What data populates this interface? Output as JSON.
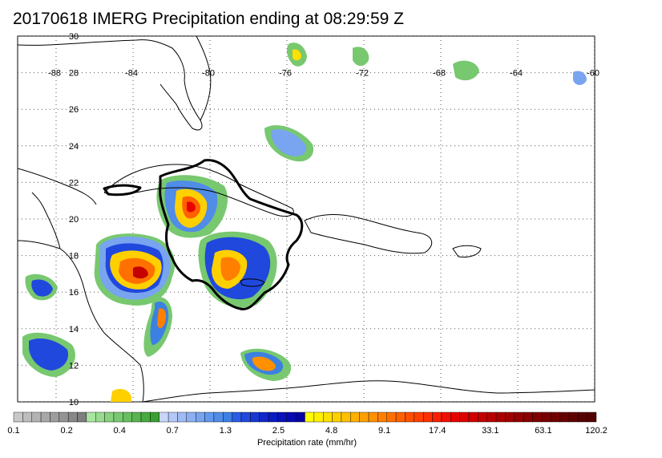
{
  "title": "20170618 IMERG Precipitation ending at 08:29:59 Z",
  "map": {
    "lon_labels": [
      "-88",
      "-84",
      "-80",
      "-76",
      "-72",
      "-68",
      "-64",
      "-60"
    ],
    "lon_values": [
      -88,
      -84,
      -80,
      -76,
      -72,
      -68,
      -64,
      -60
    ],
    "lat_labels": [
      "30",
      "28",
      "26",
      "24",
      "22",
      "20",
      "18",
      "16",
      "14",
      "12",
      "10"
    ],
    "lat_values": [
      30,
      28,
      26,
      24,
      22,
      20,
      18,
      16,
      14,
      12,
      10
    ],
    "lon_range": [
      -90,
      -60
    ],
    "lat_range": [
      10,
      30
    ],
    "grid": "dotted"
  },
  "colorbar": {
    "title": "Precipitation rate (mm/hr)",
    "tick_labels": [
      "0.1",
      "0.2",
      "0.4",
      "0.7",
      "1.3",
      "2.5",
      "4.8",
      "9.1",
      "17.4",
      "33.1",
      "63.1",
      "120.2"
    ],
    "colors": [
      "#c8c8c8",
      "#bdbdbd",
      "#b3b3b3",
      "#a8a8a8",
      "#9d9d9d",
      "#939393",
      "#888888",
      "#7e7e7e",
      "#a8e6a0",
      "#98dc90",
      "#88d280",
      "#78c870",
      "#68be60",
      "#58b450",
      "#48aa40",
      "#389f32",
      "#c8d4f8",
      "#b4c8f6",
      "#a0bcf4",
      "#8cb0f2",
      "#78a4f0",
      "#6498ee",
      "#508ce8",
      "#3c80e2",
      "#2a5ae6",
      "#2048dc",
      "#1838d2",
      "#1028c8",
      "#0a1cc0",
      "#0812b8",
      "#060ab0",
      "#0404a8",
      "#ffff00",
      "#fff000",
      "#ffe000",
      "#ffd000",
      "#ffc000",
      "#ffb000",
      "#ffa000",
      "#ff9000",
      "#ff8000",
      "#ff7000",
      "#ff6000",
      "#ff5000",
      "#ff4000",
      "#ff3000",
      "#f82000",
      "#f01000",
      "#e80000",
      "#dc0000",
      "#d00000",
      "#c40000",
      "#b80000",
      "#ac0000",
      "#a00000",
      "#940000",
      "#880000",
      "#800000",
      "#780000",
      "#700000",
      "#680000",
      "#600000",
      "#580000",
      "#500000"
    ]
  }
}
